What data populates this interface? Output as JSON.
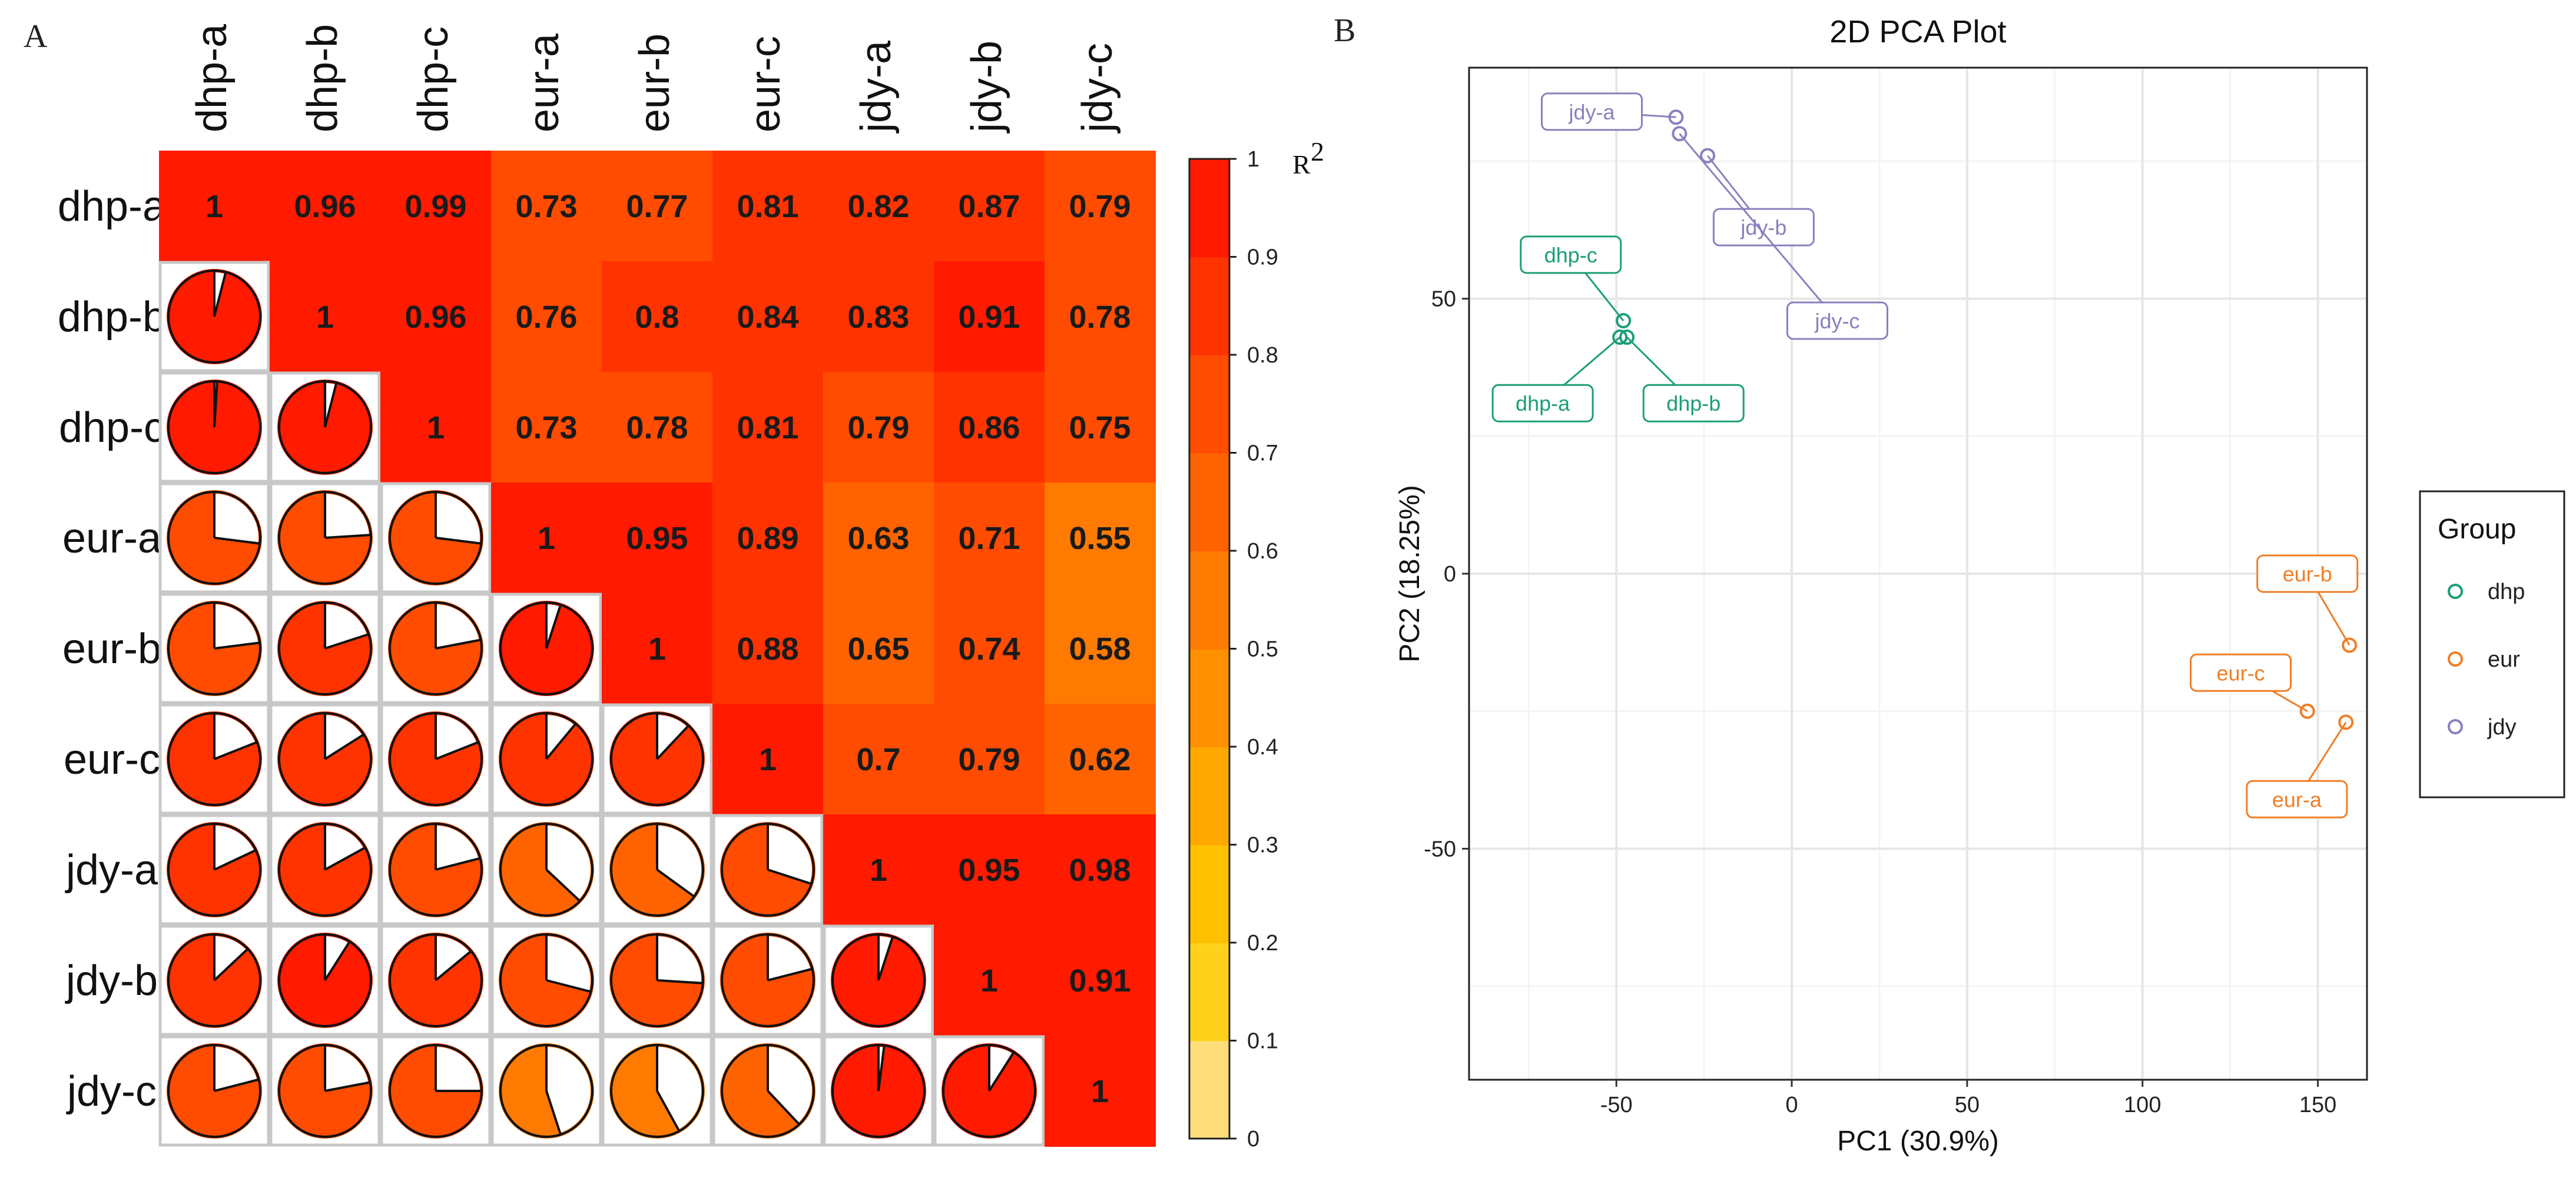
{
  "panels": {
    "a": "A",
    "b": "B"
  },
  "chart_data": [
    {
      "type": "heatmap",
      "title": "",
      "samples": [
        "dhp-a",
        "dhp-b",
        "dhp-c",
        "eur-a",
        "eur-b",
        "eur-c",
        "jdy-a",
        "jdy-b",
        "jdy-c"
      ],
      "matrix": [
        [
          1,
          0.96,
          0.99,
          0.73,
          0.77,
          0.81,
          0.82,
          0.87,
          0.79
        ],
        [
          0.96,
          1,
          0.96,
          0.76,
          0.8,
          0.84,
          0.83,
          0.91,
          0.78
        ],
        [
          0.99,
          0.96,
          1,
          0.73,
          0.78,
          0.81,
          0.79,
          0.86,
          0.75
        ],
        [
          0.73,
          0.76,
          0.73,
          1,
          0.95,
          0.89,
          0.63,
          0.71,
          0.55
        ],
        [
          0.77,
          0.8,
          0.78,
          0.95,
          1,
          0.88,
          0.65,
          0.74,
          0.58
        ],
        [
          0.81,
          0.84,
          0.81,
          0.89,
          0.88,
          1,
          0.7,
          0.79,
          0.62
        ],
        [
          0.82,
          0.83,
          0.79,
          0.63,
          0.65,
          0.7,
          1,
          0.95,
          0.98
        ],
        [
          0.87,
          0.91,
          0.86,
          0.71,
          0.74,
          0.79,
          0.95,
          1,
          0.91
        ],
        [
          0.79,
          0.78,
          0.75,
          0.55,
          0.58,
          0.62,
          0.98,
          0.91,
          1
        ]
      ],
      "upper": "numbers",
      "lower": "pie",
      "colorbar": {
        "label": "R",
        "superscript": "2",
        "ticks": [
          "0",
          "0.1",
          "0.2",
          "0.3",
          "0.4",
          "0.5",
          "0.6",
          "0.7",
          "0.8",
          "0.9",
          "1"
        ],
        "colors": [
          "#FFDE7A",
          "#FFD11A",
          "#FFC000",
          "#FFA800",
          "#FF9000",
          "#FF7A00",
          "#FF6300",
          "#FF4C00",
          "#FF3300",
          "#FF1A00"
        ]
      }
    },
    {
      "type": "scatter",
      "title": "2D PCA Plot",
      "xlabel": "PC1 (30.9%)",
      "ylabel": "PC2 (18.25%)",
      "xlim": [
        -92,
        164
      ],
      "ylim": [
        -92,
        92
      ],
      "xticks": [
        -50,
        0,
        50,
        100,
        150
      ],
      "yticks": [
        -50,
        0,
        50
      ],
      "xtick_labels": [
        "-50",
        "0",
        "50",
        "100",
        "150"
      ],
      "ytick_labels": [
        "-50",
        "0",
        "50"
      ],
      "grid": true,
      "legend": {
        "title": "Group",
        "position": "right",
        "entries": [
          {
            "name": "dhp",
            "color": "#1B9E77"
          },
          {
            "name": "eur",
            "color": "#F07E26"
          },
          {
            "name": "jdy",
            "color": "#8C7FBF"
          }
        ]
      },
      "points": [
        {
          "label": "dhp-a",
          "group": "dhp",
          "x": -49,
          "y": 43,
          "lx": -71,
          "ly": 31
        },
        {
          "label": "dhp-b",
          "group": "dhp",
          "x": -47,
          "y": 43,
          "lx": -28,
          "ly": 31
        },
        {
          "label": "dhp-c",
          "group": "dhp",
          "x": -48,
          "y": 46,
          "lx": -63,
          "ly": 58
        },
        {
          "label": "eur-a",
          "group": "eur",
          "x": 158,
          "y": -27,
          "lx": 144,
          "ly": -41
        },
        {
          "label": "eur-b",
          "group": "eur",
          "x": 159,
          "y": -13,
          "lx": 147,
          "ly": 0
        },
        {
          "label": "eur-c",
          "group": "eur",
          "x": 147,
          "y": -25,
          "lx": 128,
          "ly": -18
        },
        {
          "label": "jdy-a",
          "group": "jdy",
          "x": -33,
          "y": 83,
          "lx": -57,
          "ly": 84
        },
        {
          "label": "jdy-b",
          "group": "jdy",
          "x": -24,
          "y": 76,
          "lx": -8,
          "ly": 63
        },
        {
          "label": "jdy-c",
          "group": "jdy",
          "x": -32,
          "y": 80,
          "lx": 13,
          "ly": 46
        }
      ]
    }
  ]
}
